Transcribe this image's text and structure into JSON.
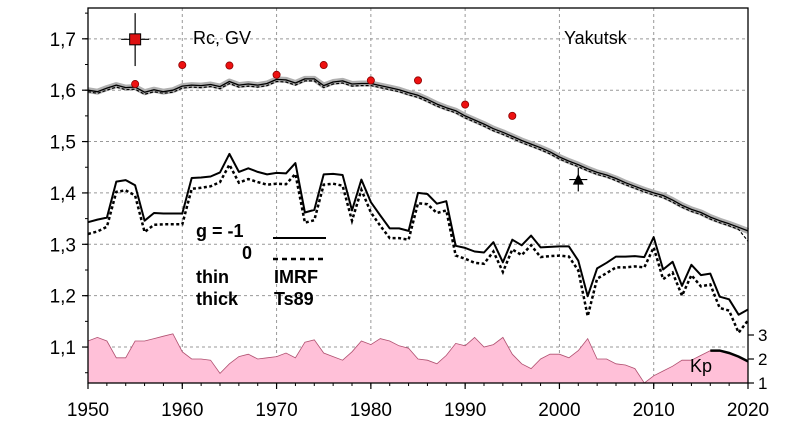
{
  "chart_data": {
    "type": "line",
    "x": {
      "min": 1950,
      "max": 2020,
      "ticks": [
        1950,
        1960,
        1970,
        1980,
        1990,
        2000,
        2010,
        2020
      ]
    },
    "y": {
      "min": 1.03,
      "max": 1.76,
      "ticks": [
        "1,1",
        "1,2",
        "1,3",
        "1,4",
        "1,5",
        "1,6",
        "1,7"
      ],
      "tick_values": [
        1.1,
        1.2,
        1.3,
        1.4,
        1.5,
        1.6,
        1.7
      ]
    },
    "grid": true,
    "annotations": {
      "rc_label": "Rc, GV",
      "station": "Yakutsk",
      "kp_label": "Kp"
    },
    "legend": {
      "g_text": "g = -1",
      "zero_text": "0",
      "thin_text": "thin",
      "thick_text": "thick",
      "imrf_text": "IMRF",
      "ts89_text": "Ts89"
    },
    "kp_axis": {
      "min": 1,
      "max": 3,
      "ticks": [
        "1",
        "2",
        "3"
      ]
    },
    "colors": {
      "kp_fill": "#ffc0d8",
      "points": "#ee1111",
      "grid": "#999999",
      "band": "#b0b0b0"
    },
    "upper_band": {
      "years": [
        1950,
        1951,
        1952,
        1953,
        1954,
        1955,
        1956,
        1957,
        1958,
        1959,
        1960,
        1961,
        1962,
        1963,
        1964,
        1965,
        1966,
        1967,
        1968,
        1969,
        1970,
        1971,
        1972,
        1973,
        1974,
        1975,
        1976,
        1977,
        1978,
        1979,
        1980,
        1981,
        1982,
        1983,
        1984,
        1985,
        1986,
        1987,
        1988,
        1989,
        1990,
        1991,
        1992,
        1993,
        1994,
        1995,
        1996,
        1997,
        1998,
        1999,
        2000,
        2001,
        2002,
        2003,
        2004,
        2005,
        2006,
        2007,
        2008,
        2009,
        2010,
        2011,
        2012,
        2013,
        2014,
        2015,
        2016,
        2017,
        2018,
        2019,
        2020
      ],
      "g_minus1": [
        1.6,
        1.597,
        1.604,
        1.61,
        1.605,
        1.606,
        1.596,
        1.601,
        1.597,
        1.6,
        1.608,
        1.61,
        1.609,
        1.611,
        1.607,
        1.617,
        1.61,
        1.612,
        1.61,
        1.613,
        1.621,
        1.62,
        1.614,
        1.622,
        1.622,
        1.609,
        1.616,
        1.618,
        1.612,
        1.613,
        1.613,
        1.609,
        1.605,
        1.601,
        1.595,
        1.59,
        1.582,
        1.573,
        1.566,
        1.56,
        1.55,
        1.542,
        1.534,
        1.525,
        1.518,
        1.51,
        1.502,
        1.495,
        1.488,
        1.48,
        1.47,
        1.462,
        1.455,
        1.447,
        1.44,
        1.435,
        1.428,
        1.42,
        1.413,
        1.406,
        1.4,
        1.395,
        1.386,
        1.376,
        1.368,
        1.362,
        1.353,
        1.346,
        1.34,
        1.333,
        1.326
      ],
      "g_zero": [
        1.597,
        1.594,
        1.6,
        1.606,
        1.601,
        1.602,
        1.592,
        1.597,
        1.594,
        1.596,
        1.604,
        1.606,
        1.605,
        1.607,
        1.603,
        1.613,
        1.606,
        1.608,
        1.606,
        1.609,
        1.617,
        1.616,
        1.61,
        1.618,
        1.618,
        1.605,
        1.612,
        1.614,
        1.608,
        1.609,
        1.609,
        1.605,
        1.601,
        1.597,
        1.591,
        1.586,
        1.578,
        1.569,
        1.562,
        1.556,
        1.546,
        1.538,
        1.53,
        1.521,
        1.514,
        1.506,
        1.498,
        1.491,
        1.484,
        1.476,
        1.466,
        1.458,
        1.451,
        1.443,
        1.436,
        1.431,
        1.424,
        1.416,
        1.409,
        1.402,
        1.396,
        1.391,
        1.382,
        1.372,
        1.364,
        1.358,
        1.349,
        1.342,
        1.336,
        1.329,
        1.306
      ]
    },
    "lower_series": {
      "years": [
        1950,
        1951,
        1952,
        1953,
        1954,
        1955,
        1956,
        1957,
        1958,
        1959,
        1960,
        1961,
        1962,
        1963,
        1964,
        1965,
        1966,
        1967,
        1968,
        1969,
        1970,
        1971,
        1972,
        1973,
        1974,
        1975,
        1976,
        1977,
        1978,
        1979,
        1980,
        1981,
        1982,
        1983,
        1984,
        1985,
        1986,
        1987,
        1988,
        1989,
        1990,
        1991,
        1992,
        1993,
        1994,
        1995,
        1996,
        1997,
        1998,
        1999,
        2000,
        2001,
        2002,
        2003,
        2004,
        2005,
        2006,
        2007,
        2008,
        2009,
        2010,
        2011,
        2012,
        2013,
        2014,
        2015,
        2016,
        2017,
        2018,
        2019,
        2020
      ],
      "g_minus1": [
        1.343,
        1.348,
        1.352,
        1.422,
        1.425,
        1.415,
        1.346,
        1.361,
        1.36,
        1.36,
        1.36,
        1.429,
        1.43,
        1.432,
        1.44,
        1.476,
        1.441,
        1.448,
        1.441,
        1.436,
        1.439,
        1.438,
        1.458,
        1.362,
        1.367,
        1.436,
        1.437,
        1.435,
        1.366,
        1.426,
        1.382,
        1.356,
        1.331,
        1.331,
        1.326,
        1.4,
        1.398,
        1.379,
        1.384,
        1.297,
        1.293,
        1.286,
        1.284,
        1.304,
        1.265,
        1.309,
        1.298,
        1.317,
        1.294,
        1.295,
        1.296,
        1.296,
        1.268,
        1.199,
        1.253,
        1.264,
        1.276,
        1.276,
        1.277,
        1.275,
        1.314,
        1.251,
        1.266,
        1.219,
        1.26,
        1.24,
        1.243,
        1.198,
        1.193,
        1.163,
        1.173
      ],
      "g_zero": [
        1.32,
        1.325,
        1.334,
        1.402,
        1.405,
        1.395,
        1.324,
        1.338,
        1.339,
        1.339,
        1.339,
        1.408,
        1.41,
        1.413,
        1.421,
        1.455,
        1.42,
        1.427,
        1.421,
        1.416,
        1.418,
        1.417,
        1.437,
        1.342,
        1.347,
        1.416,
        1.418,
        1.414,
        1.346,
        1.406,
        1.362,
        1.336,
        1.312,
        1.312,
        1.309,
        1.38,
        1.378,
        1.361,
        1.366,
        1.278,
        1.272,
        1.264,
        1.262,
        1.286,
        1.246,
        1.29,
        1.279,
        1.298,
        1.275,
        1.277,
        1.278,
        1.276,
        1.249,
        1.16,
        1.233,
        1.244,
        1.255,
        1.255,
        1.257,
        1.255,
        1.294,
        1.232,
        1.245,
        1.2,
        1.24,
        1.218,
        1.222,
        1.176,
        1.171,
        1.128,
        1.152
      ]
    },
    "red_points": {
      "x": [
        1955,
        1960,
        1965,
        1970,
        1975,
        1980,
        1985,
        1990,
        1995
      ],
      "y": [
        1.612,
        1.649,
        1.648,
        1.63,
        1.649,
        1.619,
        1.619,
        1.572,
        1.55
      ]
    },
    "red_square": {
      "x": 1955,
      "y": 1.699,
      "err_low": 1.647,
      "err_high": 1.75
    },
    "triangle": {
      "x": 2002,
      "y": 1.426,
      "err_low": 1.403,
      "err_high": 1.449
    },
    "kp": {
      "years": [
        1950,
        1951,
        1952,
        1953,
        1954,
        1955,
        1956,
        1957,
        1958,
        1959,
        1960,
        1961,
        1962,
        1963,
        1964,
        1965,
        1966,
        1967,
        1968,
        1969,
        1970,
        1971,
        1972,
        1973,
        1974,
        1975,
        1976,
        1977,
        1978,
        1979,
        1980,
        1981,
        1982,
        1983,
        1984,
        1985,
        1986,
        1987,
        1988,
        1989,
        1990,
        1991,
        1992,
        1993,
        1994,
        1995,
        1996,
        1997,
        1998,
        1999,
        2000,
        2001,
        2002,
        2003,
        2004,
        2005,
        2006,
        2007,
        2008,
        2009,
        2010,
        2011,
        2012,
        2013,
        2014,
        2015,
        2016,
        2017,
        2018,
        2019,
        2020
      ],
      "values": [
        2.75,
        2.9,
        2.75,
        2.05,
        2.05,
        2.75,
        2.75,
        2.85,
        2.95,
        3.05,
        2.3,
        2.0,
        2.0,
        1.95,
        1.4,
        1.8,
        2.1,
        2.2,
        2.0,
        2.05,
        2.1,
        2.25,
        2.05,
        2.7,
        2.8,
        2.25,
        2.1,
        1.95,
        2.3,
        2.75,
        2.6,
        2.85,
        2.75,
        2.55,
        2.45,
        2.0,
        1.95,
        1.8,
        2.15,
        2.65,
        2.55,
        2.9,
        2.5,
        2.6,
        2.9,
        2.2,
        1.8,
        1.6,
        2.0,
        2.2,
        2.2,
        2.05,
        2.35,
        2.85,
        2.0,
        2.0,
        1.8,
        1.75,
        1.6,
        1.0,
        1.3,
        1.5,
        1.7,
        1.95,
        1.95,
        2.15,
        2.35,
        2.35,
        2.25,
        2.1,
        1.9
      ]
    }
  }
}
